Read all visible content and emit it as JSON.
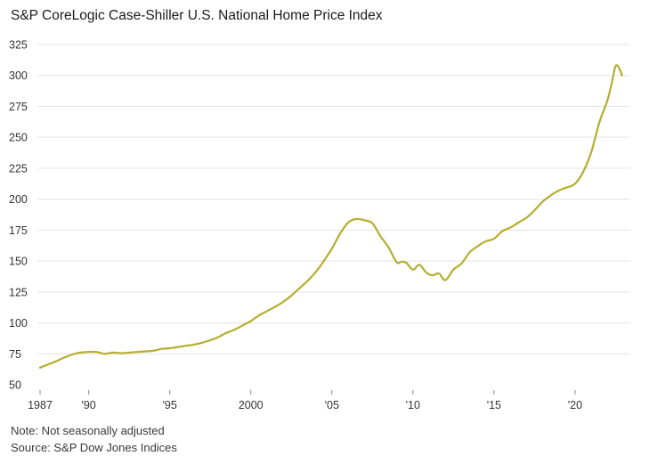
{
  "chart_data": {
    "type": "line",
    "title": "S&P CoreLogic Case-Shiller U.S. National Home Price Index",
    "xlabel": "",
    "ylabel": "",
    "ylim": [
      50,
      325
    ],
    "xlim": [
      1987,
      2023.3
    ],
    "grid": true,
    "y_ticks": [
      {
        "value": 50,
        "label": "50"
      },
      {
        "value": 75,
        "label": "75"
      },
      {
        "value": 100,
        "label": "100"
      },
      {
        "value": 125,
        "label": "125"
      },
      {
        "value": 150,
        "label": "150"
      },
      {
        "value": 175,
        "label": "175"
      },
      {
        "value": 200,
        "label": "200"
      },
      {
        "value": 225,
        "label": "225"
      },
      {
        "value": 250,
        "label": "250"
      },
      {
        "value": 275,
        "label": "275"
      },
      {
        "value": 300,
        "label": "300"
      },
      {
        "value": 325,
        "label": "325"
      }
    ],
    "x_ticks": [
      {
        "value": 1987,
        "label": "1987"
      },
      {
        "value": 1990,
        "label": "'90"
      },
      {
        "value": 1995,
        "label": "'95"
      },
      {
        "value": 2000,
        "label": "2000"
      },
      {
        "value": 2005,
        "label": "'05"
      },
      {
        "value": 2010,
        "label": "'10"
      },
      {
        "value": 2015,
        "label": "'15"
      },
      {
        "value": 2020,
        "label": "'20"
      }
    ],
    "series_color": "#b5ae2e",
    "series": [
      {
        "x": [
          1987.0,
          1987.5,
          1988.0,
          1988.5,
          1989.0,
          1989.5,
          1990.0,
          1990.5,
          1991.0,
          1991.5,
          1992.0,
          1992.5,
          1993.0,
          1993.5,
          1994.0,
          1994.5,
          1995.0,
          1995.5,
          1996.0,
          1996.5,
          1997.0,
          1997.5,
          1998.0,
          1998.5,
          1999.0,
          1999.5,
          2000.0,
          2000.5,
          2001.0,
          2001.5,
          2002.0,
          2002.5,
          2003.0,
          2003.5,
          2004.0,
          2004.5,
          2005.0,
          2005.5,
          2006.0,
          2006.5,
          2007.0,
          2007.5,
          2008.0,
          2008.5,
          2009.0,
          2009.3,
          2009.6,
          2010.0,
          2010.4,
          2010.8,
          2011.2,
          2011.6,
          2012.0,
          2012.5,
          2013.0,
          2013.5,
          2014.0,
          2014.5,
          2015.0,
          2015.5,
          2016.0,
          2016.5,
          2017.0,
          2017.5,
          2018.0,
          2018.5,
          2019.0,
          2019.5,
          2020.0,
          2020.5,
          2021.0,
          2021.5,
          2022.0,
          2022.3,
          2022.5,
          2022.7,
          2022.9
        ],
        "values": [
          63.8,
          66.5,
          69.0,
          72.0,
          74.5,
          76.0,
          76.5,
          76.5,
          75.0,
          76.0,
          75.5,
          76.0,
          76.5,
          77.0,
          77.5,
          79.0,
          79.5,
          80.5,
          81.5,
          82.5,
          84.0,
          86.0,
          88.5,
          92.0,
          94.5,
          98.0,
          101.5,
          106.0,
          109.5,
          113.0,
          117.0,
          122.0,
          128.0,
          134.0,
          141.0,
          150.0,
          160.0,
          172.0,
          181.0,
          184.0,
          183.0,
          180.5,
          170.0,
          161.0,
          149.0,
          149.5,
          148.5,
          143.0,
          147.0,
          141.0,
          138.5,
          140.0,
          134.5,
          143.0,
          148.0,
          157.0,
          162.0,
          166.0,
          168.0,
          174.0,
          177.0,
          181.0,
          185.0,
          191.0,
          198.0,
          203.0,
          207.0,
          209.5,
          212.5,
          222.0,
          238.0,
          262.0,
          280.0,
          296.0,
          307.5,
          306.5,
          300.0
        ]
      }
    ]
  },
  "notes": {
    "line1": "Note: Not seasonally adjusted",
    "line2": "Source: S&P Dow Jones Indices"
  }
}
